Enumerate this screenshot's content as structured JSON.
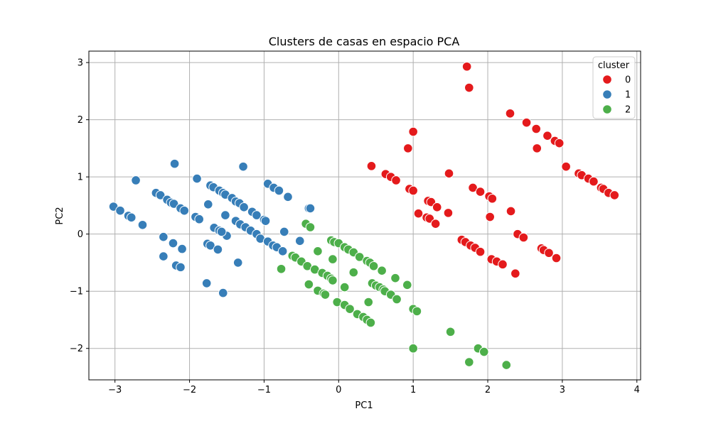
{
  "chart_data": {
    "type": "scatter",
    "title": "Clusters de casas en espacio PCA",
    "xlabel": "PC1",
    "ylabel": "PC2",
    "xlim": [
      -3.35,
      4.05
    ],
    "ylim": [
      -2.55,
      3.2
    ],
    "xticks": [
      -3,
      -2,
      -1,
      0,
      1,
      2,
      3,
      4
    ],
    "xtick_labels": [
      "−3",
      "−2",
      "−1",
      "0",
      "1",
      "2",
      "3",
      "4"
    ],
    "yticks": [
      -2,
      -1,
      0,
      1,
      2,
      3
    ],
    "ytick_labels": [
      "−2",
      "−1",
      "0",
      "1",
      "2",
      "3"
    ],
    "grid": true,
    "legend": {
      "title": "cluster",
      "placement": "top-right"
    },
    "series": [
      {
        "name": "0",
        "color": "#e41a1c",
        "points": [
          [
            1.72,
            2.93
          ],
          [
            1.75,
            2.56
          ],
          [
            2.3,
            2.11
          ],
          [
            2.52,
            1.95
          ],
          [
            2.65,
            1.84
          ],
          [
            2.8,
            1.72
          ],
          [
            2.9,
            1.63
          ],
          [
            2.96,
            1.59
          ],
          [
            2.66,
            1.5
          ],
          [
            1.0,
            1.79
          ],
          [
            0.93,
            1.5
          ],
          [
            0.44,
            1.19
          ],
          [
            0.63,
            1.05
          ],
          [
            0.7,
            1.0
          ],
          [
            0.77,
            0.94
          ],
          [
            0.95,
            0.79
          ],
          [
            1.0,
            0.76
          ],
          [
            1.48,
            1.06
          ],
          [
            1.8,
            0.81
          ],
          [
            1.9,
            0.74
          ],
          [
            2.02,
            0.66
          ],
          [
            2.06,
            0.62
          ],
          [
            3.05,
            1.18
          ],
          [
            3.22,
            1.06
          ],
          [
            3.26,
            1.03
          ],
          [
            3.35,
            0.97
          ],
          [
            3.42,
            0.92
          ],
          [
            3.52,
            0.81
          ],
          [
            3.55,
            0.79
          ],
          [
            3.62,
            0.72
          ],
          [
            3.7,
            0.68
          ],
          [
            1.07,
            0.36
          ],
          [
            1.18,
            0.29
          ],
          [
            1.22,
            0.27
          ],
          [
            1.2,
            0.58
          ],
          [
            1.24,
            0.56
          ],
          [
            1.32,
            0.47
          ],
          [
            1.3,
            0.18
          ],
          [
            1.47,
            0.37
          ],
          [
            2.03,
            0.3
          ],
          [
            2.31,
            0.4
          ],
          [
            2.4,
            0.0
          ],
          [
            2.48,
            -0.06
          ],
          [
            1.65,
            -0.1
          ],
          [
            1.7,
            -0.14
          ],
          [
            1.77,
            -0.2
          ],
          [
            1.83,
            -0.24
          ],
          [
            1.9,
            -0.31
          ],
          [
            2.05,
            -0.44
          ],
          [
            2.12,
            -0.48
          ],
          [
            2.2,
            -0.53
          ],
          [
            2.72,
            -0.25
          ],
          [
            2.75,
            -0.28
          ],
          [
            2.82,
            -0.33
          ],
          [
            2.92,
            -0.42
          ],
          [
            2.37,
            -0.69
          ]
        ]
      },
      {
        "name": "1",
        "color": "#377eb8",
        "points": [
          [
            -3.02,
            0.48
          ],
          [
            -2.93,
            0.41
          ],
          [
            -2.82,
            0.32
          ],
          [
            -2.78,
            0.29
          ],
          [
            -2.72,
            0.94
          ],
          [
            -2.63,
            0.16
          ],
          [
            -2.45,
            0.72
          ],
          [
            -2.39,
            0.68
          ],
          [
            -2.3,
            0.6
          ],
          [
            -2.25,
            0.55
          ],
          [
            -2.21,
            0.53
          ],
          [
            -2.12,
            0.45
          ],
          [
            -2.07,
            0.41
          ],
          [
            -2.2,
            1.23
          ],
          [
            -1.9,
            0.97
          ],
          [
            -1.92,
            0.3
          ],
          [
            -1.87,
            0.26
          ],
          [
            -1.75,
            0.52
          ],
          [
            -1.72,
            0.85
          ],
          [
            -1.68,
            0.82
          ],
          [
            -1.6,
            0.76
          ],
          [
            -1.55,
            0.72
          ],
          [
            -1.52,
            0.69
          ],
          [
            -1.43,
            0.63
          ],
          [
            -1.38,
            0.57
          ],
          [
            -1.33,
            0.54
          ],
          [
            -1.27,
            0.47
          ],
          [
            -1.28,
            1.18
          ],
          [
            -1.16,
            0.39
          ],
          [
            -1.1,
            0.33
          ],
          [
            -1.0,
            0.25
          ],
          [
            -0.98,
            0.23
          ],
          [
            -1.52,
            0.33
          ],
          [
            -1.5,
            -0.03
          ],
          [
            -1.38,
            0.23
          ],
          [
            -1.32,
            0.17
          ],
          [
            -1.25,
            0.12
          ],
          [
            -1.18,
            0.06
          ],
          [
            -1.1,
            0.0
          ],
          [
            -2.35,
            -0.05
          ],
          [
            -2.22,
            -0.16
          ],
          [
            -2.1,
            -0.26
          ],
          [
            -2.35,
            -0.39
          ],
          [
            -2.18,
            -0.55
          ],
          [
            -2.12,
            -0.58
          ],
          [
            -1.76,
            -0.17
          ],
          [
            -1.72,
            -0.2
          ],
          [
            -1.62,
            -0.27
          ],
          [
            -1.67,
            0.11
          ],
          [
            -1.6,
            0.06
          ],
          [
            -1.57,
            0.04
          ],
          [
            -1.35,
            -0.5
          ],
          [
            -1.77,
            -0.86
          ],
          [
            -1.55,
            -1.03
          ],
          [
            -0.95,
            0.88
          ],
          [
            -0.87,
            0.81
          ],
          [
            -0.8,
            0.76
          ],
          [
            -0.68,
            0.65
          ],
          [
            -0.4,
            0.45
          ],
          [
            -0.38,
            0.45
          ],
          [
            -0.73,
            0.04
          ],
          [
            -0.52,
            -0.12
          ],
          [
            -1.05,
            -0.08
          ],
          [
            -0.95,
            -0.13
          ],
          [
            -0.88,
            -0.2
          ],
          [
            -0.83,
            -0.23
          ],
          [
            -0.75,
            -0.3
          ]
        ]
      },
      {
        "name": "2",
        "color": "#4daf4a",
        "points": [
          [
            -0.44,
            0.18
          ],
          [
            -0.38,
            0.12
          ],
          [
            -0.62,
            -0.38
          ],
          [
            -0.58,
            -0.41
          ],
          [
            -0.5,
            -0.48
          ],
          [
            -0.42,
            -0.56
          ],
          [
            -0.32,
            -0.62
          ],
          [
            -0.28,
            -0.3
          ],
          [
            -0.22,
            -0.68
          ],
          [
            -0.15,
            -0.73
          ],
          [
            -0.1,
            -0.78
          ],
          [
            -0.08,
            -0.81
          ],
          [
            -0.08,
            -0.44
          ],
          [
            -0.1,
            -0.11
          ],
          [
            -0.06,
            -0.14
          ],
          [
            0.0,
            -0.16
          ],
          [
            0.08,
            -0.23
          ],
          [
            0.13,
            -0.27
          ],
          [
            0.2,
            -0.32
          ],
          [
            0.28,
            -0.4
          ],
          [
            0.38,
            -0.47
          ],
          [
            0.42,
            -0.5
          ],
          [
            0.47,
            -0.56
          ],
          [
            0.58,
            -0.64
          ],
          [
            0.76,
            -0.77
          ],
          [
            0.92,
            -0.89
          ],
          [
            0.2,
            -0.67
          ],
          [
            -0.77,
            -0.61
          ],
          [
            -0.4,
            -0.88
          ],
          [
            -0.28,
            -0.99
          ],
          [
            -0.2,
            -1.04
          ],
          [
            -0.18,
            -1.06
          ],
          [
            -0.02,
            -1.19
          ],
          [
            0.08,
            -1.24
          ],
          [
            0.15,
            -1.31
          ],
          [
            0.25,
            -1.4
          ],
          [
            0.33,
            -1.45
          ],
          [
            0.38,
            -1.5
          ],
          [
            0.43,
            -1.55
          ],
          [
            0.4,
            -1.19
          ],
          [
            0.08,
            -0.93
          ],
          [
            0.45,
            -0.86
          ],
          [
            0.5,
            -0.9
          ],
          [
            0.55,
            -0.93
          ],
          [
            0.6,
            -0.97
          ],
          [
            0.62,
            -1.0
          ],
          [
            0.7,
            -1.06
          ],
          [
            0.78,
            -1.14
          ],
          [
            1.0,
            -1.31
          ],
          [
            1.05,
            -1.35
          ],
          [
            1.0,
            -2.0
          ],
          [
            1.5,
            -1.71
          ],
          [
            1.75,
            -2.24
          ],
          [
            1.87,
            -2.0
          ],
          [
            1.95,
            -2.06
          ],
          [
            2.25,
            -2.29
          ]
        ]
      }
    ]
  }
}
